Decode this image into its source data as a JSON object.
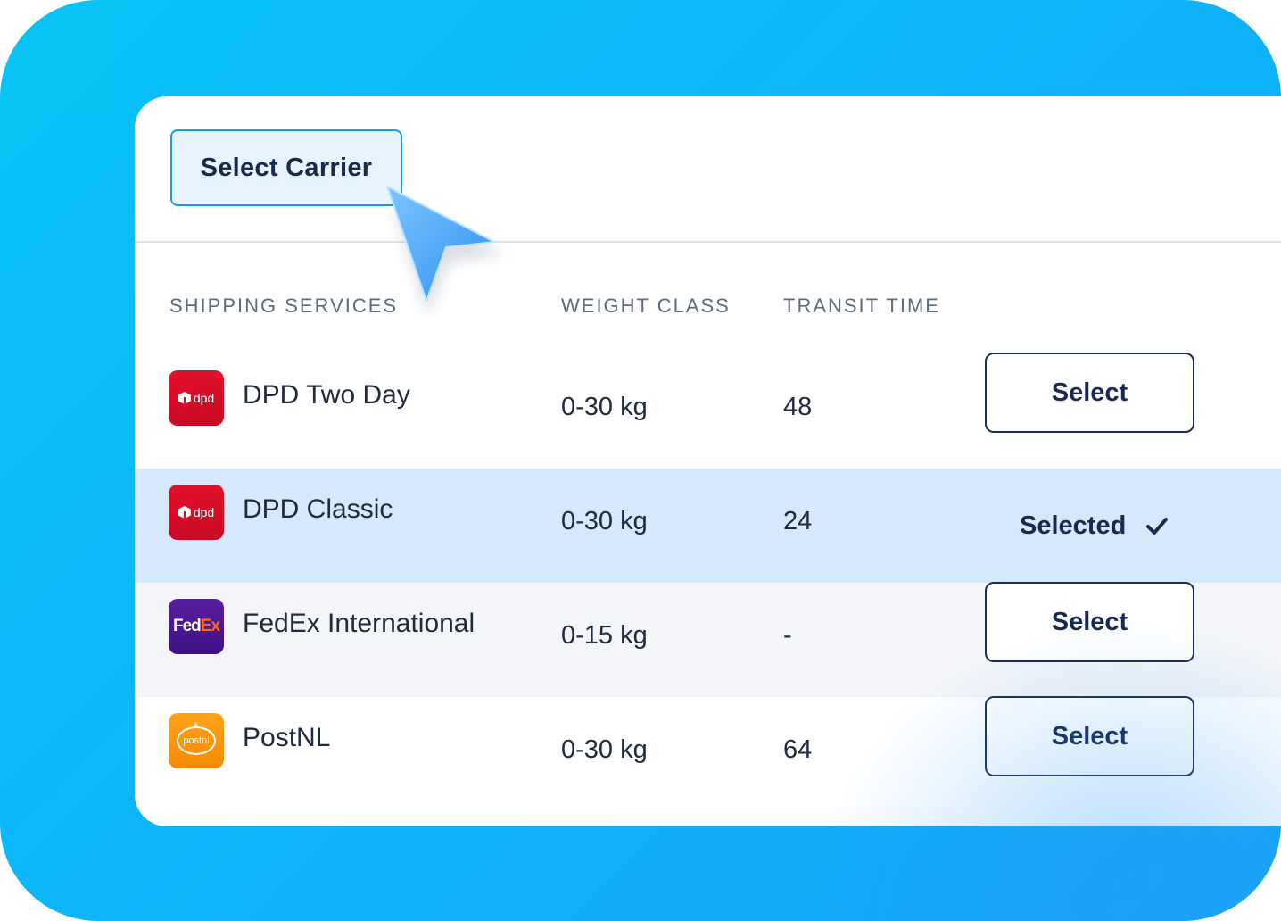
{
  "toolbar": {
    "select_carrier_label": "Select Carrier"
  },
  "table": {
    "headers": [
      "SHIPPING SERVICES",
      "WEIGHT CLASS",
      "TRANSIT TIME"
    ],
    "rows": [
      {
        "name": "DPD Two Day",
        "weight": "0-30 kg",
        "transit": "48",
        "action": "Select",
        "logo_text": "dpd",
        "icon": "dpd-logo"
      },
      {
        "name": "DPD Classic",
        "weight": "0-30 kg",
        "transit": "24",
        "action": "Selected",
        "logo_text": "dpd",
        "icon": "dpd-logo",
        "selected": true
      },
      {
        "name": "FedEx International",
        "weight": "0-15 kg",
        "transit": "-",
        "action": "Select",
        "logo_text_a": "Fed",
        "logo_text_b": "Ex",
        "icon": "fedex-logo"
      },
      {
        "name": "PostNL",
        "weight": "0-30 kg",
        "transit": "64",
        "action": "Select",
        "logo_text": "postnl",
        "icon": "postnl-logo"
      }
    ]
  },
  "colors": {
    "accent": "#1e9be6",
    "navy": "#17294f",
    "selected_row": "#d4e9fc",
    "dpd": "#dc0d28",
    "fedex": "#4d148c",
    "postnl": "#f79100"
  }
}
